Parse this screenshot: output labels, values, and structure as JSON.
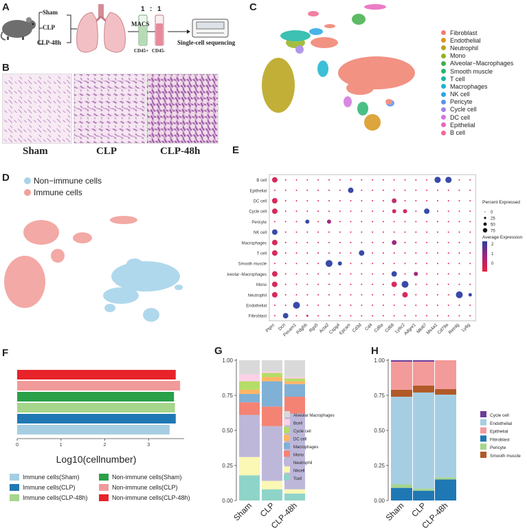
{
  "panels": {
    "a": "A",
    "b": "B",
    "c": "C",
    "d": "D",
    "e": "E",
    "f": "F",
    "g": "G",
    "h": "H"
  },
  "panelA": {
    "groups": [
      "Sham",
      "CLP",
      "CLP-48h"
    ],
    "macs": "MACS",
    "ratio": [
      "1",
      ":",
      "1"
    ],
    "tube_labels": [
      "CD45+",
      "CD45-"
    ],
    "seq": "Single-cell sequencing"
  },
  "panelB": {
    "labels": [
      "Sham",
      "CLP",
      "CLP-48h"
    ]
  },
  "panelC": {
    "legend": [
      {
        "name": "Fibroblast",
        "color": "#f07f6e"
      },
      {
        "name": "Endothelial",
        "color": "#d8961a"
      },
      {
        "name": "Neutrophil",
        "color": "#b8a216"
      },
      {
        "name": "Mono",
        "color": "#93b21d"
      },
      {
        "name": "Alveolar−Macrophages",
        "color": "#40b04a"
      },
      {
        "name": "Smooth muscle",
        "color": "#2bb470"
      },
      {
        "name": "T cell",
        "color": "#1bb7a5"
      },
      {
        "name": "Macrophages",
        "color": "#1cb4cf"
      },
      {
        "name": "NK cell",
        "color": "#2aa6e6"
      },
      {
        "name": "Pericyte",
        "color": "#5b94ef"
      },
      {
        "name": "Cycle cell",
        "color": "#a584e6"
      },
      {
        "name": "DC cell",
        "color": "#d374dc"
      },
      {
        "name": "Epithelial",
        "color": "#e964bd"
      },
      {
        "name": "B cell",
        "color": "#f26b93"
      }
    ]
  },
  "panelD": {
    "legend": [
      {
        "name": "Non−immune cells",
        "color": "#a8d4ea"
      },
      {
        "name": "Immune cells",
        "color": "#f2a09c"
      }
    ]
  },
  "panelE": {
    "rows": [
      "B cell",
      "Epithelial",
      "DC cell",
      "Cycle cell",
      "Pericyte",
      "NK cell",
      "Macrophages",
      "T cell",
      "Smooth muscle",
      "Alveolar−Macrophages",
      "Mono",
      "Neutrophil",
      "Endothelial",
      "Fibroblast"
    ],
    "genes": [
      "Ptprc",
      "Dcn",
      "Pecam1",
      "Pdgfrb",
      "Rgs5",
      "Acta2",
      "Cspg4",
      "Epcam",
      "Cd3d",
      "Cd4",
      "Cd8a",
      "Cd68",
      "Ly6c2",
      "Adgre1",
      "Mki67",
      "Ms4a1",
      "Cd79a",
      "Retnlg",
      "Ly6g"
    ],
    "pct_title": "Percent Expressed",
    "pct_levels": [
      "0",
      "25",
      "50",
      "75"
    ],
    "avg_title": "Average Expression",
    "avg_ticks": [
      "2",
      "1",
      "0"
    ]
  },
  "chart_data": [
    {
      "type": "bar",
      "orientation": "horizontal",
      "title": "",
      "xlabel": "Log10(cellnumber)",
      "xlim": [
        0,
        4
      ],
      "xticks": [
        "0",
        "1",
        "2",
        "3"
      ],
      "categories": [
        "Non-immune cells(CLP-48h)",
        "Non-immune cells(CLP)",
        "Non-immune cells(Sham)",
        "Immune cells(CLP-48h)",
        "Immune cells(CLP)",
        "Immune cells(Sham)"
      ],
      "values": [
        3.62,
        3.72,
        3.58,
        3.6,
        3.62,
        3.48
      ],
      "colors": [
        "#e8232a",
        "#f19a9a",
        "#2aa048",
        "#a6d58c",
        "#1f78b4",
        "#a6cee3"
      ],
      "legend": [
        {
          "name": "Immune cells(Sham)",
          "color": "#a6cee3"
        },
        {
          "name": "Non-immune cells(Sham)",
          "color": "#2aa048"
        },
        {
          "name": "Immune cells(CLP)",
          "color": "#1f78b4"
        },
        {
          "name": "Non-immune cells(CLP)",
          "color": "#f19a9a"
        },
        {
          "name": "Immune cells(CLP-48h)",
          "color": "#a6d58c"
        },
        {
          "name": "Non-immune cells(CLP-48h)",
          "color": "#e8232a"
        }
      ]
    },
    {
      "type": "bar",
      "stacked": true,
      "title": "",
      "categories": [
        "Sham",
        "CLP",
        "CLP-48h"
      ],
      "ylim": [
        0,
        1
      ],
      "yticks": [
        "0.00",
        "0.25",
        "0.50",
        "0.75",
        "1.00"
      ],
      "series": [
        {
          "name": "Tcell",
          "color": "#8fd4c8",
          "values": [
            0.18,
            0.08,
            0.05
          ]
        },
        {
          "name": "Nkcell",
          "color": "#fbf7b4",
          "values": [
            0.13,
            0.06,
            0.03
          ]
        },
        {
          "name": "Neutrophil",
          "color": "#bdb8da",
          "values": [
            0.3,
            0.39,
            0.54
          ]
        },
        {
          "name": "Mono",
          "color": "#f48374",
          "values": [
            0.09,
            0.14,
            0.12
          ]
        },
        {
          "name": "Macrophages",
          "color": "#7fb0d6",
          "values": [
            0.06,
            0.18,
            0.09
          ]
        },
        {
          "name": "DC cell",
          "color": "#fdb564",
          "values": [
            0.03,
            0.03,
            0.02
          ]
        },
        {
          "name": "Cycle cell",
          "color": "#b5dd68",
          "values": [
            0.06,
            0.03,
            0.02
          ]
        },
        {
          "name": "Bcell",
          "color": "#fcd0e6",
          "values": [
            0.05,
            0.01,
            0.01
          ]
        },
        {
          "name": "Alveolar Macrophages",
          "color": "#d9d9d9",
          "values": [
            0.1,
            0.08,
            0.12
          ]
        }
      ]
    },
    {
      "type": "bar",
      "stacked": true,
      "title": "",
      "categories": [
        "Sham",
        "CLP",
        "CLP-48h"
      ],
      "ylim": [
        0,
        1
      ],
      "yticks": [
        "0.00",
        "0.25",
        "0.50",
        "0.75",
        "1.00"
      ],
      "series": [
        {
          "name": "Smooth muscle",
          "color": "#b15928",
          "values": [
            0.0,
            0.0,
            0.0
          ]
        },
        {
          "name": "Fibroblast",
          "color": "#1f78b4",
          "values": [
            0.09,
            0.07,
            0.15
          ]
        },
        {
          "name": "Pericyte",
          "color": "#a6d58c",
          "values": [
            0.025,
            0.015,
            0.015
          ]
        },
        {
          "name": "Endothelial",
          "color": "#a6cee3",
          "values": [
            0.625,
            0.685,
            0.59
          ]
        },
        {
          "name": "Smooth muscle",
          "color": "#b15928",
          "values": [
            0.05,
            0.05,
            0.04
          ]
        },
        {
          "name": "Epithelial",
          "color": "#f39a9a",
          "values": [
            0.2,
            0.17,
            0.205
          ]
        },
        {
          "name": "Cycle cell",
          "color": "#6a3d9a",
          "values": [
            0.01,
            0.01,
            0.0
          ]
        }
      ],
      "legend": [
        {
          "name": "Cycle cell",
          "color": "#6a3d9a"
        },
        {
          "name": "Endothelial",
          "color": "#a6cee3"
        },
        {
          "name": "Epithelial",
          "color": "#f39a9a"
        },
        {
          "name": "Fibroblast",
          "color": "#1f78b4"
        },
        {
          "name": "Pericyte",
          "color": "#a6d58c"
        },
        {
          "name": "Smooth muscle",
          "color": "#b15928"
        }
      ]
    }
  ]
}
